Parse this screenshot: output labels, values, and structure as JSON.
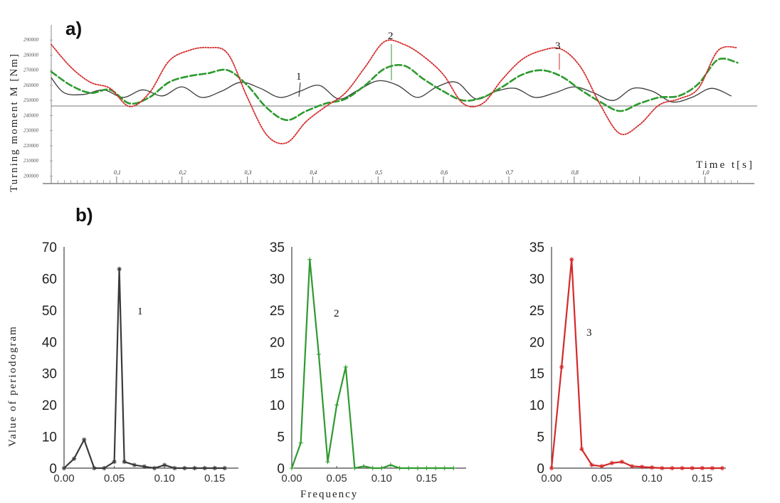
{
  "panel_a": {
    "label": "a)",
    "ylabel": "Turning moment M [Nm]",
    "xlabel": "Time    t[s]",
    "y_ticks": [
      "290000",
      "280000",
      "270000",
      "260000",
      "250000",
      "240000",
      "230000",
      "220000",
      "210000",
      "200000"
    ],
    "y_tick_values": [
      290000,
      280000,
      270000,
      260000,
      250000,
      240000,
      230000,
      220000,
      210000,
      200000
    ],
    "x_ticks": [
      "0,1",
      "0,2",
      "0,3",
      "0,4",
      "0,5",
      "0,6",
      "0,7",
      "0,8",
      "1,0"
    ],
    "x_tick_values": [
      0.1,
      0.2,
      0.3,
      0.4,
      0.5,
      0.6,
      0.7,
      0.8,
      1.0
    ],
    "annotations": [
      "1",
      "2",
      "3"
    ]
  },
  "panel_b": {
    "label": "b)",
    "ylabel": "Value of periodogram",
    "xlabel": "Frequency",
    "annotations": [
      "1",
      "2",
      "3"
    ]
  },
  "colors": {
    "series1": "#3a3a3a",
    "series2": "#2e9a2e",
    "series3": "#d42a2a",
    "axis": "#555555"
  },
  "chart_data": [
    {
      "type": "line",
      "xlabel": "Time    t[s]",
      "ylabel": "Turning moment M [Nm]",
      "xlim": [
        0,
        1.08
      ],
      "ylim": [
        195000,
        300000
      ],
      "series": [
        {
          "name": "1",
          "style": "solid",
          "x": [
            0,
            0.02,
            0.05,
            0.08,
            0.11,
            0.14,
            0.17,
            0.2,
            0.23,
            0.26,
            0.29,
            0.32,
            0.35,
            0.38,
            0.41,
            0.44,
            0.47,
            0.5,
            0.53,
            0.56,
            0.59,
            0.62,
            0.65,
            0.68,
            0.71,
            0.74,
            0.77,
            0.8,
            0.83,
            0.86,
            0.89,
            0.92,
            0.95,
            0.98,
            1.01,
            1.04
          ],
          "y": [
            265000,
            255000,
            254000,
            257000,
            252000,
            257000,
            253000,
            259000,
            252000,
            256000,
            262000,
            258000,
            252000,
            256000,
            260000,
            251000,
            257000,
            263000,
            260000,
            252000,
            259000,
            262000,
            251000,
            256000,
            258000,
            252000,
            255000,
            259000,
            255000,
            250000,
            258000,
            256000,
            249000,
            252000,
            258000,
            253000
          ]
        },
        {
          "name": "2",
          "style": "dashed",
          "x": [
            0,
            0.03,
            0.06,
            0.09,
            0.12,
            0.15,
            0.18,
            0.21,
            0.24,
            0.27,
            0.3,
            0.33,
            0.36,
            0.39,
            0.42,
            0.45,
            0.48,
            0.51,
            0.54,
            0.57,
            0.6,
            0.63,
            0.66,
            0.69,
            0.72,
            0.75,
            0.78,
            0.81,
            0.84,
            0.87,
            0.9,
            0.93,
            0.96,
            0.99,
            1.02,
            1.05
          ],
          "y": [
            269000,
            260000,
            255000,
            257000,
            248000,
            252000,
            262000,
            266000,
            268000,
            270000,
            260000,
            245000,
            237000,
            243000,
            248000,
            251000,
            260000,
            271000,
            273000,
            264000,
            256000,
            250000,
            252000,
            259000,
            267000,
            270000,
            266000,
            257000,
            249000,
            243000,
            248000,
            252000,
            253000,
            261000,
            277000,
            275000
          ]
        },
        {
          "name": "3",
          "style": "dotted",
          "x": [
            0,
            0.03,
            0.06,
            0.09,
            0.12,
            0.15,
            0.18,
            0.21,
            0.24,
            0.27,
            0.3,
            0.33,
            0.36,
            0.39,
            0.42,
            0.45,
            0.48,
            0.51,
            0.54,
            0.57,
            0.6,
            0.63,
            0.66,
            0.69,
            0.72,
            0.75,
            0.78,
            0.81,
            0.84,
            0.87,
            0.9,
            0.93,
            0.96,
            0.99,
            1.02,
            1.05
          ],
          "y": [
            287000,
            272000,
            262000,
            258000,
            246000,
            255000,
            276000,
            283000,
            285000,
            281000,
            252000,
            227000,
            222000,
            236000,
            246000,
            255000,
            272000,
            289000,
            287000,
            279000,
            267000,
            248000,
            248000,
            264000,
            277000,
            283000,
            284000,
            272000,
            247000,
            228000,
            234000,
            247000,
            251000,
            258000,
            283000,
            285000
          ]
        }
      ]
    },
    {
      "type": "line",
      "ylabel": "Value of periodogram",
      "xlim": [
        0,
        0.17
      ],
      "ylim": [
        0,
        70
      ],
      "x_ticks": [
        "0.00",
        "0.05",
        "0.10",
        "0.15"
      ],
      "y_ticks": [
        "0",
        "10",
        "20",
        "30",
        "40",
        "50",
        "60",
        "70"
      ],
      "series": [
        {
          "name": "1",
          "x": [
            0.0,
            0.01,
            0.02,
            0.03,
            0.04,
            0.05,
            0.055,
            0.06,
            0.07,
            0.08,
            0.09,
            0.1,
            0.11,
            0.12,
            0.13,
            0.14,
            0.15,
            0.16
          ],
          "y": [
            0,
            3,
            9,
            0,
            0,
            2,
            63,
            2,
            1,
            0.5,
            0,
            1,
            0,
            0,
            0,
            0,
            0,
            0
          ]
        }
      ]
    },
    {
      "type": "line",
      "xlabel": "Frequency",
      "xlim": [
        0,
        0.19
      ],
      "ylim": [
        0,
        35
      ],
      "x_ticks": [
        "0.00",
        "0.05",
        "0.10",
        "0.15"
      ],
      "y_ticks": [
        "0",
        "5",
        "10",
        "15",
        "20",
        "25",
        "30",
        "35"
      ],
      "series": [
        {
          "name": "2",
          "x": [
            0.0,
            0.01,
            0.02,
            0.03,
            0.04,
            0.05,
            0.06,
            0.07,
            0.08,
            0.09,
            0.1,
            0.11,
            0.12,
            0.13,
            0.14,
            0.15,
            0.16,
            0.17,
            0.18
          ],
          "y": [
            0,
            4,
            33,
            18,
            1,
            10,
            16,
            0,
            0.3,
            0,
            0,
            0.5,
            0,
            0,
            0,
            0,
            0,
            0,
            0
          ]
        }
      ]
    },
    {
      "type": "line",
      "xlim": [
        0,
        0.17
      ],
      "ylim": [
        0,
        35
      ],
      "x_ticks": [
        "0.00",
        "0.05",
        "0.10",
        "0.15"
      ],
      "y_ticks": [
        "0",
        "5",
        "10",
        "15",
        "20",
        "25",
        "30",
        "35"
      ],
      "series": [
        {
          "name": "3",
          "x": [
            0.0,
            0.01,
            0.02,
            0.03,
            0.04,
            0.05,
            0.06,
            0.07,
            0.08,
            0.09,
            0.1,
            0.11,
            0.12,
            0.13,
            0.14,
            0.15,
            0.16,
            0.17
          ],
          "y": [
            0,
            16,
            33,
            3,
            0.5,
            0.3,
            0.8,
            1,
            0.3,
            0.2,
            0.1,
            0,
            0,
            0,
            0,
            0,
            0,
            0
          ]
        }
      ]
    }
  ]
}
